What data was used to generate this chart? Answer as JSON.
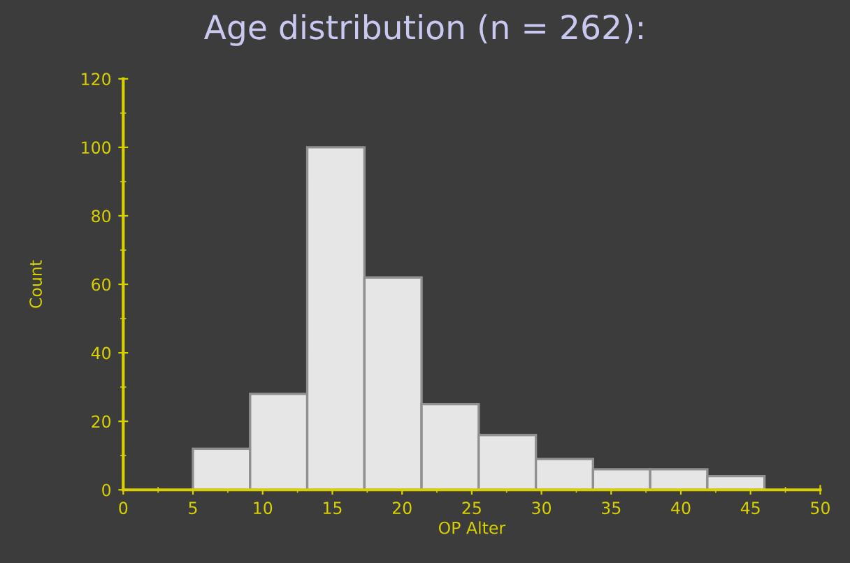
{
  "chart_data": {
    "type": "histogram",
    "title": "Age distribution (n = 262):",
    "xlabel": "OP Alter",
    "ylabel": "Count",
    "bins": [
      5,
      9.1,
      13.2,
      17.3,
      21.4,
      25.5,
      29.6,
      33.7,
      37.8,
      41.9,
      46
    ],
    "values": [
      12,
      28,
      100,
      62,
      25,
      16,
      9,
      6,
      6,
      4
    ],
    "color": "#e6e6e6",
    "xlim": [
      0,
      50
    ],
    "xticks": [
      0,
      5,
      10,
      15,
      20,
      25,
      30,
      35,
      40,
      45,
      50
    ],
    "ylim": [
      0,
      120
    ],
    "yticks": [
      0,
      20,
      40,
      60,
      80,
      100,
      120
    ],
    "grid": false
  }
}
